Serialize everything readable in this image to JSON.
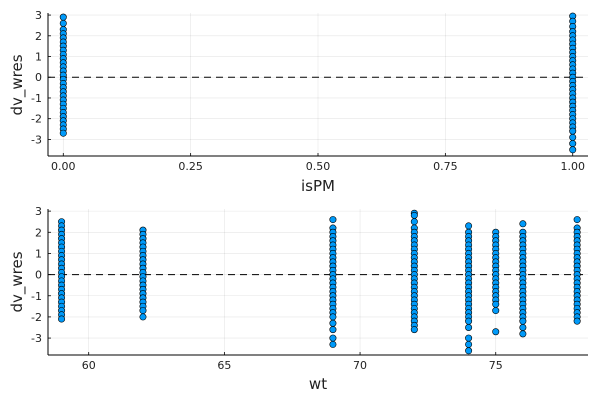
{
  "chart_data": [
    {
      "type": "scatter",
      "xlabel": "isPM",
      "ylabel": "dv_wres",
      "xlim": [
        -0.03,
        1.03
      ],
      "ylim": [
        -3.8,
        3.1
      ],
      "xticks": [
        0.0,
        0.25,
        0.5,
        0.75,
        1.0
      ],
      "xtick_labels": [
        "0.00",
        "0.25",
        "0.50",
        "0.75",
        "1.00"
      ],
      "yticks": [
        -3,
        -2,
        -1,
        0,
        1,
        2,
        3
      ],
      "ytick_labels": [
        "-3",
        "-2",
        "-1",
        "0",
        "1",
        "2",
        "3"
      ],
      "reference_line": {
        "y": 0,
        "style": "dashed",
        "color": "#000000"
      },
      "grid": true,
      "legend": "none",
      "marker_color": "#009af9",
      "series": [
        {
          "columns": [
            {
              "x": 0.0,
              "y": [
                2.9,
                2.6,
                2.3,
                2.1,
                1.9,
                1.7,
                1.5,
                1.3,
                1.1,
                0.9,
                0.7,
                0.5,
                0.3,
                0.1,
                -0.1,
                -0.3,
                -0.5,
                -0.7,
                -0.9,
                -1.1,
                -1.3,
                -1.5,
                -1.7,
                -1.9,
                -2.1,
                -2.3,
                -2.5,
                -2.7
              ]
            },
            {
              "x": 1.0,
              "y": [
                2.95,
                2.7,
                2.45,
                2.2,
                2.0,
                1.8,
                1.6,
                1.4,
                1.2,
                1.0,
                0.8,
                0.6,
                0.4,
                0.2,
                0.0,
                -0.2,
                -0.4,
                -0.6,
                -0.8,
                -1.0,
                -1.2,
                -1.4,
                -1.6,
                -1.8,
                -2.0,
                -2.2,
                -2.4,
                -2.6,
                -2.9,
                -3.2,
                -3.5
              ]
            }
          ]
        }
      ]
    },
    {
      "type": "scatter",
      "xlabel": "wt",
      "ylabel": "dv_wres",
      "xlim": [
        58.5,
        78.4
      ],
      "ylim": [
        -3.8,
        3.1
      ],
      "xticks": [
        60,
        65,
        70,
        75
      ],
      "xtick_labels": [
        "60",
        "65",
        "70",
        "75"
      ],
      "yticks": [
        -3,
        -2,
        -1,
        0,
        1,
        2,
        3
      ],
      "ytick_labels": [
        "-3",
        "-2",
        "-1",
        "0",
        "1",
        "2",
        "3"
      ],
      "reference_line": {
        "y": 0,
        "style": "dashed",
        "color": "#000000"
      },
      "grid": true,
      "legend": "none",
      "marker_color": "#009af9",
      "series": [
        {
          "columns": [
            {
              "x": 59,
              "y": [
                2.5,
                2.3,
                2.1,
                1.9,
                1.7,
                1.5,
                1.3,
                1.1,
                0.9,
                0.7,
                0.5,
                0.3,
                0.1,
                -0.1,
                -0.3,
                -0.5,
                -0.7,
                -0.9,
                -1.1,
                -1.3,
                -1.5,
                -1.7,
                -1.9,
                -2.1
              ]
            },
            {
              "x": 62,
              "y": [
                2.1,
                1.9,
                1.7,
                1.5,
                1.3,
                1.1,
                0.9,
                0.7,
                0.5,
                0.3,
                0.1,
                -0.1,
                -0.3,
                -0.5,
                -0.7,
                -0.9,
                -1.1,
                -1.3,
                -1.5,
                -1.7,
                -2.0
              ]
            },
            {
              "x": 69,
              "y": [
                2.6,
                2.2,
                2.0,
                1.8,
                1.6,
                1.4,
                1.2,
                1.0,
                0.8,
                0.6,
                0.4,
                0.2,
                0.0,
                -0.2,
                -0.4,
                -0.6,
                -0.8,
                -1.0,
                -1.2,
                -1.4,
                -1.6,
                -1.8,
                -2.0,
                -2.3,
                -2.6,
                -3.0,
                -3.3
              ]
            },
            {
              "x": 72,
              "y": [
                2.9,
                2.8,
                2.5,
                2.2,
                2.0,
                1.8,
                1.6,
                1.4,
                1.2,
                1.0,
                0.8,
                0.6,
                0.4,
                0.2,
                0.0,
                -0.2,
                -0.4,
                -0.6,
                -0.8,
                -1.0,
                -1.2,
                -1.4,
                -1.6,
                -1.8,
                -2.0,
                -2.2,
                -2.4,
                -2.6
              ]
            },
            {
              "x": 74,
              "y": [
                2.3,
                2.0,
                1.8,
                1.6,
                1.4,
                1.2,
                1.0,
                0.8,
                0.6,
                0.4,
                0.2,
                0.0,
                -0.2,
                -0.4,
                -0.6,
                -0.8,
                -1.0,
                -1.2,
                -1.4,
                -1.6,
                -1.8,
                -2.0,
                -2.2,
                -2.5,
                -3.0,
                -3.3,
                -3.6
              ]
            },
            {
              "x": 75,
              "y": [
                2.0,
                1.8,
                1.6,
                1.4,
                1.2,
                1.0,
                0.8,
                0.6,
                0.4,
                0.2,
                0.0,
                -0.2,
                -0.4,
                -0.6,
                -0.8,
                -1.0,
                -1.2,
                -1.4,
                -1.7,
                -2.7
              ]
            },
            {
              "x": 76,
              "y": [
                2.4,
                2.0,
                1.8,
                1.6,
                1.4,
                1.2,
                1.0,
                0.8,
                0.6,
                0.4,
                0.2,
                0.0,
                -0.2,
                -0.4,
                -0.6,
                -0.8,
                -1.0,
                -1.2,
                -1.4,
                -1.6,
                -1.8,
                -2.0,
                -2.2,
                -2.5,
                -2.8
              ]
            },
            {
              "x": 78,
              "y": [
                2.6,
                2.2,
                2.0,
                1.8,
                1.6,
                1.4,
                1.2,
                1.0,
                0.8,
                0.6,
                0.4,
                0.2,
                0.0,
                -0.2,
                -0.4,
                -0.6,
                -0.8,
                -1.0,
                -1.2,
                -1.4,
                -1.6,
                -1.8,
                -2.0,
                -2.2
              ]
            }
          ]
        }
      ]
    }
  ]
}
